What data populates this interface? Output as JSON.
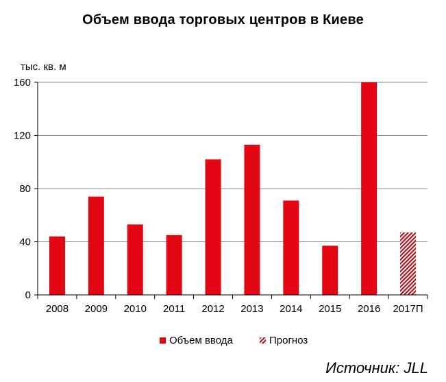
{
  "chart_data": {
    "type": "bar",
    "title": "Объем ввода торговых центров в Киеве",
    "ylabel": "тыс. кв. м",
    "xlabel": "",
    "ylim": [
      0,
      160
    ],
    "yticks": [
      0,
      40,
      80,
      120,
      160
    ],
    "grid": true,
    "categories": [
      "2008",
      "2009",
      "2010",
      "2011",
      "2012",
      "2013",
      "2014",
      "2015",
      "2016",
      "2017П"
    ],
    "series": [
      {
        "name": "Объем ввода",
        "color": "#e30613",
        "pattern": "solid",
        "values": [
          44,
          74,
          53,
          45,
          102,
          113,
          71,
          37,
          160,
          null
        ]
      },
      {
        "name": "Прогноз",
        "color": "#b0151d",
        "pattern": "hatched",
        "values": [
          null,
          null,
          null,
          null,
          null,
          null,
          null,
          null,
          null,
          47
        ]
      }
    ],
    "legend_position": "bottom"
  },
  "source": "Источник: JLL"
}
